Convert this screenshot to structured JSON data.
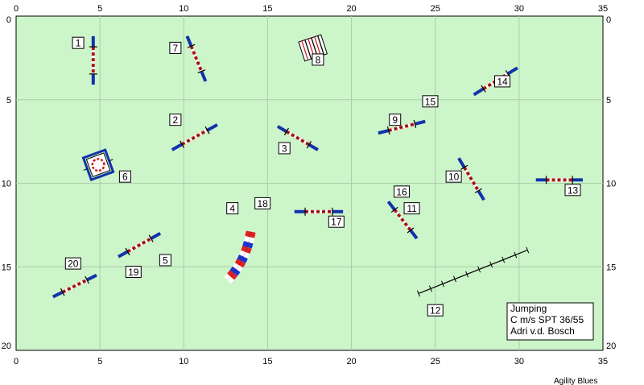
{
  "course": {
    "background_color": "#ccf5c9",
    "grid_color": "#a9cda6",
    "grid_step_m": 5,
    "width_m": 35,
    "height_m": 20
  },
  "axes": {
    "x_ticks": [
      "0",
      "5",
      "10",
      "15",
      "20",
      "25",
      "30",
      "35"
    ],
    "y_ticks": [
      "0",
      "5",
      "10",
      "15",
      "20"
    ]
  },
  "info_box": {
    "line1": "Jumping",
    "line2": "C m/s SPT 36/55",
    "line3": "Adri v.d. Bosch"
  },
  "credit": "Agility Blues",
  "obstacle_type_colors": {
    "pole": "#cc2222",
    "stand": "#1133aa",
    "tunnel_red": "#e02020",
    "tunnel_blue": "#2233cc"
  },
  "labels": [
    {
      "text": "1",
      "x": 3.7,
      "y": 1.6
    },
    {
      "text": "7",
      "x": 9.5,
      "y": 1.9
    },
    {
      "text": "8",
      "x": 18.0,
      "y": 2.6
    },
    {
      "text": "14",
      "x": 29.0,
      "y": 3.9
    },
    {
      "text": "15",
      "x": 24.7,
      "y": 5.1
    },
    {
      "text": "2",
      "x": 9.5,
      "y": 6.2
    },
    {
      "text": "9",
      "x": 22.6,
      "y": 6.2
    },
    {
      "text": "3",
      "x": 16.0,
      "y": 7.9
    },
    {
      "text": "6",
      "x": 6.5,
      "y": 9.6
    },
    {
      "text": "10",
      "x": 26.1,
      "y": 9.6
    },
    {
      "text": "13",
      "x": 33.2,
      "y": 10.4
    },
    {
      "text": "16",
      "x": 23.0,
      "y": 10.5
    },
    {
      "text": "18",
      "x": 14.7,
      "y": 11.2
    },
    {
      "text": "4",
      "x": 12.9,
      "y": 11.5
    },
    {
      "text": "11",
      "x": 23.6,
      "y": 11.5
    },
    {
      "text": "17",
      "x": 19.1,
      "y": 12.3
    },
    {
      "text": "5",
      "x": 8.9,
      "y": 14.6
    },
    {
      "text": "20",
      "x": 3.4,
      "y": 14.8
    },
    {
      "text": "19",
      "x": 7.0,
      "y": 15.3
    },
    {
      "text": "12",
      "x": 25.0,
      "y": 17.6
    }
  ],
  "jumps": [
    {
      "id": "1",
      "x1": 4.6,
      "y1": 1.2,
      "x2": 4.6,
      "y2": 4.1
    },
    {
      "id": "7",
      "x1": 10.2,
      "y1": 1.2,
      "x2": 11.3,
      "y2": 3.9
    },
    {
      "id": "14",
      "x1": 27.3,
      "y1": 4.7,
      "x2": 29.9,
      "y2": 3.1
    },
    {
      "id": "2",
      "x1": 9.3,
      "y1": 8.0,
      "x2": 12.0,
      "y2": 6.5
    },
    {
      "id": "9",
      "x1": 21.6,
      "y1": 7.0,
      "x2": 24.4,
      "y2": 6.3
    },
    {
      "id": "3",
      "x1": 15.6,
      "y1": 6.6,
      "x2": 18.0,
      "y2": 8.0
    },
    {
      "id": "10",
      "x1": 26.4,
      "y1": 8.5,
      "x2": 27.9,
      "y2": 11.0
    },
    {
      "id": "13",
      "x1": 31.0,
      "y1": 9.8,
      "x2": 33.8,
      "y2": 9.8
    },
    {
      "id": "11",
      "x1": 22.2,
      "y1": 11.1,
      "x2": 23.9,
      "y2": 13.3
    },
    {
      "id": "17",
      "x1": 16.6,
      "y1": 11.7,
      "x2": 19.5,
      "y2": 11.7
    },
    {
      "id": "5/19",
      "x1": 6.1,
      "y1": 14.4,
      "x2": 8.6,
      "y2": 13.0
    },
    {
      "id": "20",
      "x1": 2.2,
      "y1": 16.8,
      "x2": 4.8,
      "y2": 15.5
    }
  ],
  "long_jump_12": {
    "x1": 24.0,
    "y1": 16.6,
    "x2": 30.5,
    "y2": 14.0,
    "rungs": 9
  },
  "tunnel_4": {
    "x0": 14.0,
    "y0": 12.9,
    "cx": 13.7,
    "cy": 14.7,
    "x1": 12.6,
    "y1": 15.8,
    "segments": 11
  },
  "table_6": {
    "x": 4.9,
    "y": 8.9,
    "size": 1.1
  },
  "wall_8": {
    "x": 17.0,
    "y": 1.3,
    "w": 1.4,
    "h": 1.2,
    "angle": -18
  }
}
